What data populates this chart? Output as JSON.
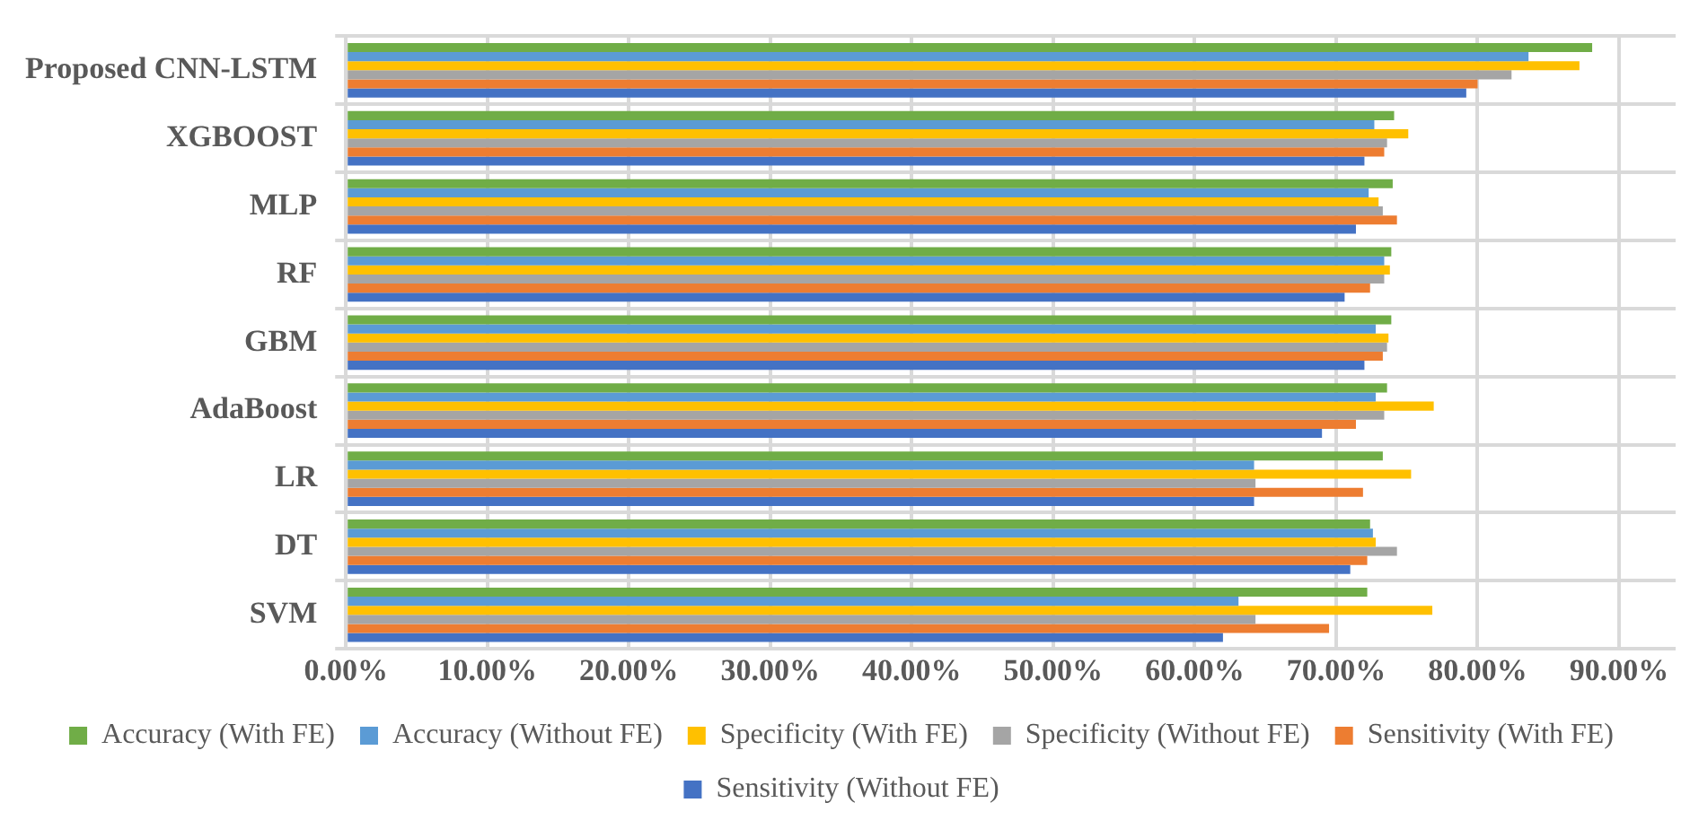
{
  "chart_data": {
    "type": "bar",
    "orientation": "horizontal",
    "categories": [
      "Proposed CNN-LSTM",
      "XGBOOST",
      "MLP",
      "RF",
      "GBM",
      "AdaBoost",
      "LR",
      "DT",
      "SVM"
    ],
    "series": [
      {
        "name": "Accuracy (With FE)",
        "color": "#70ad47",
        "values": [
          88.1,
          74.1,
          74.0,
          73.9,
          73.9,
          73.6,
          73.3,
          72.4,
          72.2
        ]
      },
      {
        "name": "Accuracy (Without FE)",
        "color": "#5b9bd5",
        "values": [
          83.6,
          72.7,
          72.3,
          73.4,
          72.8,
          72.8,
          64.2,
          72.6,
          63.1
        ]
      },
      {
        "name": "Specificity (With FE)",
        "color": "#ffc000",
        "values": [
          87.2,
          75.1,
          73.0,
          73.8,
          73.7,
          76.9,
          75.3,
          72.8,
          76.8
        ]
      },
      {
        "name": "Specificity (Without FE)",
        "color": "#a5a5a5",
        "values": [
          82.4,
          73.6,
          73.3,
          73.4,
          73.6,
          73.4,
          64.3,
          74.3,
          64.3
        ]
      },
      {
        "name": "Sensitivity (With FE)",
        "color": "#ed7d31",
        "values": [
          80.0,
          73.4,
          74.3,
          72.4,
          73.3,
          71.4,
          71.9,
          72.2,
          69.5
        ]
      },
      {
        "name": "Sensitivity (Without FE)",
        "color": "#4472c4",
        "values": [
          79.2,
          72.0,
          71.4,
          70.6,
          72.0,
          69.0,
          64.2,
          71.0,
          62.0
        ]
      }
    ],
    "xlim": [
      0,
      94
    ],
    "xticks": [
      {
        "value": 0,
        "label": "0.00%"
      },
      {
        "value": 10,
        "label": "10.00%"
      },
      {
        "value": 20,
        "label": "20.00%"
      },
      {
        "value": 30,
        "label": "30.00%"
      },
      {
        "value": 40,
        "label": "40.00%"
      },
      {
        "value": 50,
        "label": "50.00%"
      },
      {
        "value": 60,
        "label": "60.00%"
      },
      {
        "value": 70,
        "label": "70.00%"
      },
      {
        "value": 80,
        "label": "80.00%"
      },
      {
        "value": 90,
        "label": "90.00%"
      }
    ],
    "grid": true,
    "legend": "bottom"
  }
}
